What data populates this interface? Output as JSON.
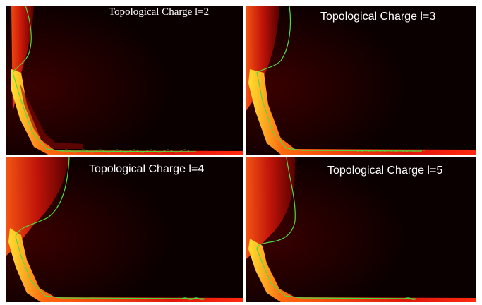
{
  "panels": [
    {
      "label": "Topological Charge l=2",
      "charge": 2
    },
    {
      "label": "Topological Charge l=3",
      "charge": 3
    },
    {
      "label": "Topological Charge l=4",
      "charge": 4
    },
    {
      "label": "Topological Charge l=5",
      "charge": 5
    }
  ],
  "colors": {
    "background": "#060000",
    "heat_dark": "#3a0000",
    "heat_mid": "#e0180c",
    "heat_hot": "#ffd21a",
    "curve": "#4fdc3c",
    "label_text": "#ffffff"
  }
}
